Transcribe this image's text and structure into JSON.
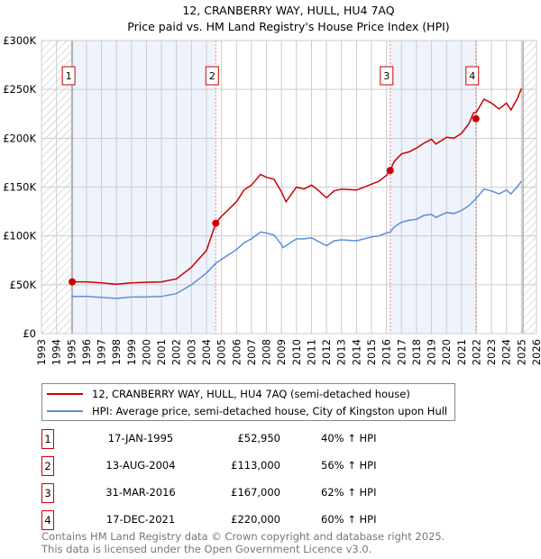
{
  "chart_data": {
    "type": "line",
    "title": "12, CRANBERRY WAY, HULL, HU4 7AQ",
    "subtitle": "Price paid vs. HM Land Registry's House Price Index (HPI)",
    "xlim": [
      1993,
      2026
    ],
    "ylim": [
      0,
      300000
    ],
    "x_ticks": [
      "1993",
      "1994",
      "1995",
      "1996",
      "1997",
      "1998",
      "1999",
      "2000",
      "2001",
      "2002",
      "2003",
      "2004",
      "2005",
      "2006",
      "2007",
      "2008",
      "2009",
      "2010",
      "2011",
      "2012",
      "2013",
      "2014",
      "2015",
      "2016",
      "2017",
      "2018",
      "2019",
      "2020",
      "2021",
      "2022",
      "2023",
      "2024",
      "2025",
      "2026"
    ],
    "y_ticks": [
      {
        "v": 0,
        "label": "£0"
      },
      {
        "v": 50000,
        "label": "£50K"
      },
      {
        "v": 100000,
        "label": "£100K"
      },
      {
        "v": 150000,
        "label": "£150K"
      },
      {
        "v": 200000,
        "label": "£200K"
      },
      {
        "v": 250000,
        "label": "£250K"
      },
      {
        "v": 300000,
        "label": "£300K"
      }
    ],
    "grid": true,
    "hatched_before": 1995.05,
    "hatched_after": 2025.1,
    "shaded_bands": [
      [
        1995.05,
        2004.62
      ],
      [
        2016.25,
        2021.96
      ]
    ],
    "series": [
      {
        "name": "12, CRANBERRY WAY, HULL, HU4 7AQ (semi-detached house)",
        "color": "#cc0000",
        "x": [
          1995.05,
          1996,
          1997,
          1998,
          1999,
          2000,
          2001,
          2002,
          2003,
          2004,
          2004.62,
          2005,
          2006,
          2006.5,
          2007,
          2007.6,
          2008,
          2008.5,
          2009,
          2009.3,
          2010,
          2010.5,
          2011,
          2011.5,
          2012,
          2012.5,
          2013,
          2014,
          2015,
          2015.5,
          2016,
          2016.25,
          2016.5,
          2017,
          2017.5,
          2018,
          2018.5,
          2019,
          2019.3,
          2020,
          2020.5,
          2021,
          2021.5,
          2021.8,
          2022,
          2022.5,
          2023,
          2023.5,
          2024,
          2024.3,
          2024.7,
          2025.0
        ],
        "y": [
          53000,
          53000,
          52000,
          50500,
          52000,
          52500,
          53000,
          56000,
          68000,
          85000,
          113000,
          120000,
          135000,
          147000,
          152000,
          163000,
          160000,
          158000,
          145000,
          135000,
          150000,
          148000,
          152000,
          146000,
          139000,
          146000,
          148000,
          147000,
          153000,
          156000,
          162000,
          167000,
          176000,
          184000,
          186000,
          190000,
          195000,
          199000,
          194000,
          201000,
          200000,
          205000,
          215000,
          226000,
          227000,
          240000,
          236000,
          230000,
          236000,
          229000,
          240000,
          251000
        ]
      },
      {
        "name": "HPI: Average price, semi-detached house, City of Kingston upon Hull",
        "color": "#5b8fd6",
        "x": [
          1995.05,
          1996,
          1997,
          1998,
          1999,
          2000,
          2001,
          2002,
          2003,
          2004,
          2004.62,
          2005,
          2006,
          2006.5,
          2007,
          2007.6,
          2008,
          2008.5,
          2009,
          2009.1,
          2010,
          2010.5,
          2011,
          2011.5,
          2012,
          2012.5,
          2013,
          2014,
          2015,
          2015.5,
          2016,
          2016.25,
          2016.5,
          2017,
          2017.5,
          2018,
          2018.5,
          2019,
          2019.3,
          2020,
          2020.5,
          2021,
          2021.5,
          2021.96,
          2022.5,
          2023,
          2023.5,
          2024,
          2024.3,
          2024.7,
          2025.0
        ],
        "y": [
          38000,
          38000,
          37000,
          36000,
          37500,
          37500,
          38000,
          41000,
          50000,
          62000,
          72000,
          76000,
          86000,
          93000,
          97000,
          104000,
          103000,
          101000,
          91000,
          88000,
          97000,
          97000,
          98000,
          94000,
          90000,
          95000,
          96000,
          95000,
          99000,
          100000,
          103000,
          104000,
          109000,
          114000,
          116000,
          117000,
          121000,
          122000,
          119000,
          124000,
          123000,
          126000,
          131000,
          138000,
          148000,
          146000,
          143000,
          147000,
          143000,
          150000,
          156000
        ]
      }
    ],
    "sales": [
      {
        "n": "1",
        "x": 1995.05,
        "y": 52950,
        "date": "17-JAN-1995",
        "price": "£52,950",
        "hpi": "40% ↑ HPI"
      },
      {
        "n": "2",
        "x": 2004.62,
        "y": 113000,
        "date": "13-AUG-2004",
        "price": "£113,000",
        "hpi": "56% ↑ HPI"
      },
      {
        "n": "3",
        "x": 2016.25,
        "y": 167000,
        "date": "31-MAR-2016",
        "price": "£167,000",
        "hpi": "62% ↑ HPI"
      },
      {
        "n": "4",
        "x": 2021.96,
        "y": 220000,
        "date": "17-DEC-2021",
        "price": "£220,000",
        "hpi": "60% ↑ HPI"
      }
    ],
    "legend_placement": "below"
  },
  "footer": {
    "line1": "Contains HM Land Registry data © Crown copyright and database right 2025.",
    "line2": "This data is licensed under the Open Government Licence v3.0."
  }
}
